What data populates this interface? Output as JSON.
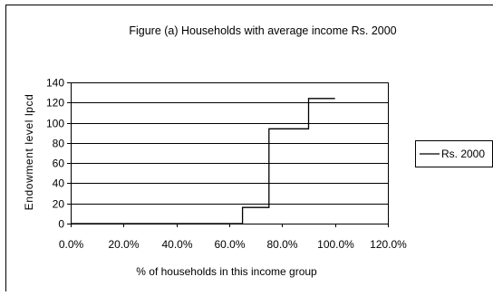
{
  "chart_data": {
    "type": "line",
    "title": "Figure (a) Households with average income Rs. 2000",
    "xlabel": "% of households in this income group",
    "ylabel": "Endowment level lpcd",
    "xlim": [
      0,
      120
    ],
    "ylim": [
      0,
      140
    ],
    "x_ticks": [
      "0.0%",
      "20.0%",
      "40.0%",
      "60.0%",
      "80.0%",
      "100.0%",
      "120.0%"
    ],
    "y_ticks": [
      "0",
      "20",
      "40",
      "60",
      "80",
      "100",
      "120",
      "140"
    ],
    "grid": "horizontal",
    "legend_position": "right",
    "series": [
      {
        "name": "Rs. 2000",
        "color": "#000000",
        "x": [
          0,
          65,
          65,
          75,
          75,
          90,
          90,
          100
        ],
        "y": [
          0,
          0,
          16,
          16,
          94,
          94,
          124,
          124
        ]
      }
    ]
  }
}
